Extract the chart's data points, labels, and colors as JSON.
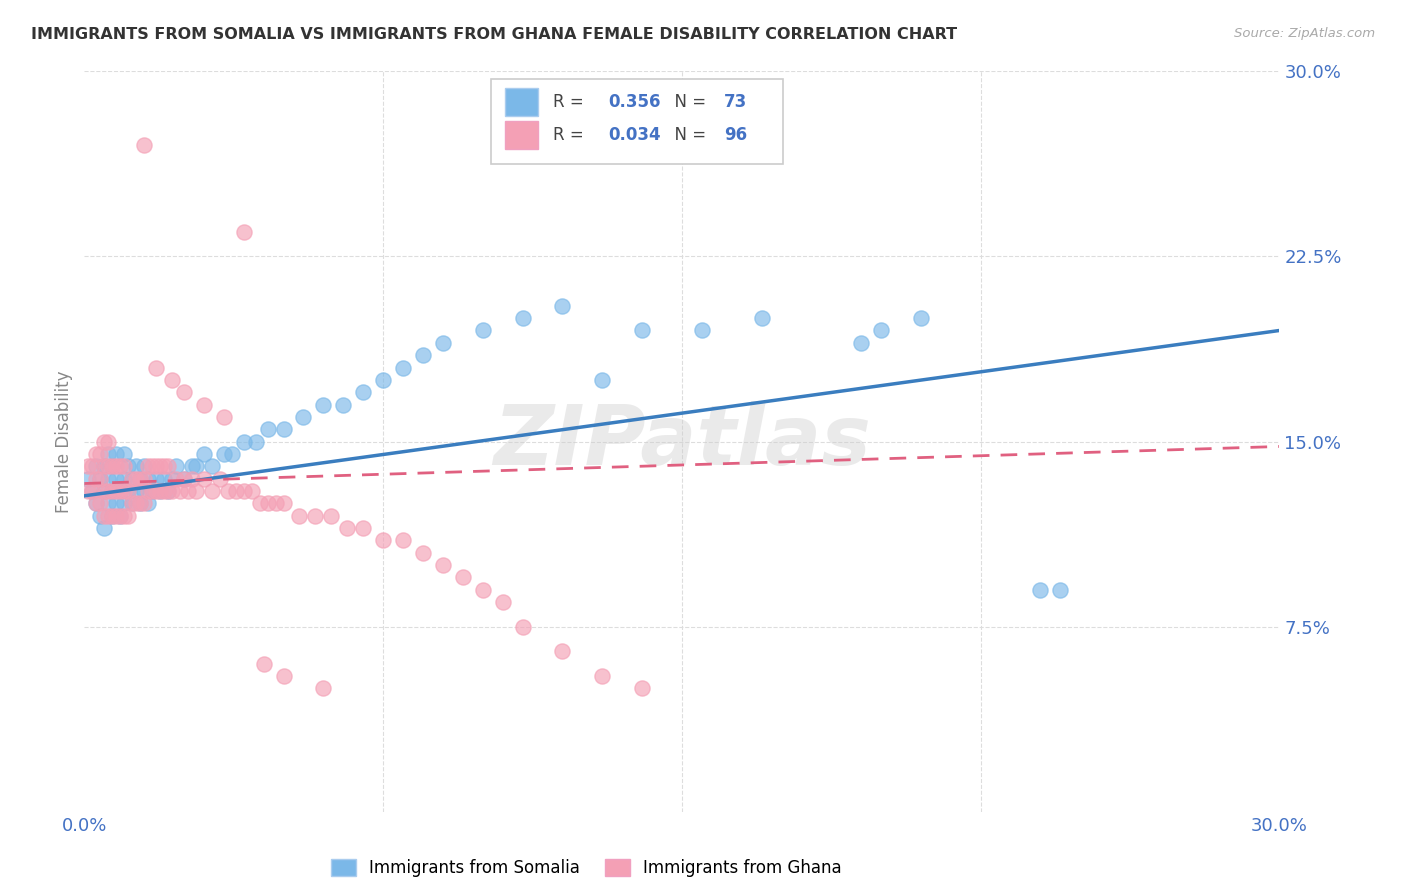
{
  "title": "IMMIGRANTS FROM SOMALIA VS IMMIGRANTS FROM GHANA FEMALE DISABILITY CORRELATION CHART",
  "source": "Source: ZipAtlas.com",
  "xlabel_legend1": "Immigrants from Somalia",
  "xlabel_legend2": "Immigrants from Ghana",
  "ylabel": "Female Disability",
  "r1": 0.356,
  "n1": 73,
  "r2": 0.034,
  "n2": 96,
  "color1": "#7bb8e8",
  "color2": "#f4a0b5",
  "trend1_color": "#3a7dbf",
  "trend2_color": "#e06080",
  "axis_color": "#4472c4",
  "background_color": "#ffffff",
  "watermark": "ZIPatlas",
  "xmin": 0.0,
  "xmax": 0.3,
  "ymin": 0.0,
  "ymax": 0.3,
  "yticks": [
    0.075,
    0.15,
    0.225,
    0.3
  ],
  "ytick_labels": [
    "7.5%",
    "15.0%",
    "22.5%",
    "30.0%"
  ],
  "somalia_x": [
    0.001,
    0.002,
    0.003,
    0.003,
    0.004,
    0.004,
    0.005,
    0.005,
    0.005,
    0.006,
    0.006,
    0.006,
    0.007,
    0.007,
    0.007,
    0.008,
    0.008,
    0.008,
    0.009,
    0.009,
    0.01,
    0.01,
    0.01,
    0.011,
    0.011,
    0.012,
    0.012,
    0.013,
    0.013,
    0.014,
    0.014,
    0.015,
    0.015,
    0.016,
    0.016,
    0.017,
    0.018,
    0.019,
    0.02,
    0.021,
    0.022,
    0.023,
    0.025,
    0.027,
    0.028,
    0.03,
    0.032,
    0.035,
    0.037,
    0.04,
    0.043,
    0.046,
    0.05,
    0.055,
    0.06,
    0.065,
    0.07,
    0.075,
    0.08,
    0.085,
    0.09,
    0.1,
    0.11,
    0.12,
    0.13,
    0.14,
    0.155,
    0.17,
    0.2,
    0.21,
    0.24,
    0.245,
    0.195
  ],
  "somalia_y": [
    0.135,
    0.13,
    0.14,
    0.125,
    0.135,
    0.12,
    0.13,
    0.14,
    0.115,
    0.125,
    0.135,
    0.145,
    0.12,
    0.13,
    0.14,
    0.125,
    0.135,
    0.145,
    0.12,
    0.13,
    0.125,
    0.135,
    0.145,
    0.13,
    0.14,
    0.125,
    0.135,
    0.13,
    0.14,
    0.125,
    0.135,
    0.13,
    0.14,
    0.125,
    0.135,
    0.13,
    0.135,
    0.13,
    0.135,
    0.13,
    0.135,
    0.14,
    0.135,
    0.14,
    0.14,
    0.145,
    0.14,
    0.145,
    0.145,
    0.15,
    0.15,
    0.155,
    0.155,
    0.16,
    0.165,
    0.165,
    0.17,
    0.175,
    0.18,
    0.185,
    0.19,
    0.195,
    0.2,
    0.205,
    0.175,
    0.195,
    0.195,
    0.2,
    0.195,
    0.2,
    0.09,
    0.09,
    0.19
  ],
  "ghana_x": [
    0.001,
    0.001,
    0.002,
    0.002,
    0.003,
    0.003,
    0.003,
    0.004,
    0.004,
    0.004,
    0.005,
    0.005,
    0.005,
    0.005,
    0.006,
    0.006,
    0.006,
    0.006,
    0.007,
    0.007,
    0.007,
    0.008,
    0.008,
    0.008,
    0.009,
    0.009,
    0.009,
    0.01,
    0.01,
    0.01,
    0.011,
    0.011,
    0.012,
    0.012,
    0.013,
    0.013,
    0.014,
    0.014,
    0.015,
    0.015,
    0.016,
    0.016,
    0.017,
    0.017,
    0.018,
    0.018,
    0.019,
    0.019,
    0.02,
    0.02,
    0.021,
    0.021,
    0.022,
    0.023,
    0.024,
    0.025,
    0.026,
    0.027,
    0.028,
    0.03,
    0.032,
    0.034,
    0.036,
    0.038,
    0.04,
    0.042,
    0.044,
    0.046,
    0.048,
    0.05,
    0.054,
    0.058,
    0.062,
    0.066,
    0.07,
    0.075,
    0.08,
    0.085,
    0.09,
    0.095,
    0.1,
    0.105,
    0.11,
    0.12,
    0.13,
    0.14,
    0.015,
    0.018,
    0.022,
    0.025,
    0.03,
    0.035,
    0.04,
    0.045,
    0.05,
    0.06
  ],
  "ghana_y": [
    0.13,
    0.14,
    0.13,
    0.14,
    0.125,
    0.135,
    0.145,
    0.125,
    0.135,
    0.145,
    0.12,
    0.13,
    0.14,
    0.15,
    0.12,
    0.13,
    0.14,
    0.15,
    0.12,
    0.13,
    0.14,
    0.12,
    0.13,
    0.14,
    0.12,
    0.13,
    0.14,
    0.12,
    0.13,
    0.14,
    0.12,
    0.13,
    0.125,
    0.135,
    0.125,
    0.135,
    0.125,
    0.135,
    0.125,
    0.135,
    0.13,
    0.14,
    0.13,
    0.14,
    0.13,
    0.14,
    0.13,
    0.14,
    0.13,
    0.14,
    0.13,
    0.14,
    0.13,
    0.135,
    0.13,
    0.135,
    0.13,
    0.135,
    0.13,
    0.135,
    0.13,
    0.135,
    0.13,
    0.13,
    0.13,
    0.13,
    0.125,
    0.125,
    0.125,
    0.125,
    0.12,
    0.12,
    0.12,
    0.115,
    0.115,
    0.11,
    0.11,
    0.105,
    0.1,
    0.095,
    0.09,
    0.085,
    0.075,
    0.065,
    0.055,
    0.05,
    0.27,
    0.18,
    0.175,
    0.17,
    0.165,
    0.16,
    0.235,
    0.06,
    0.055,
    0.05
  ],
  "trend1_start_y": 0.128,
  "trend1_end_y": 0.195,
  "trend2_start_y": 0.133,
  "trend2_end_y": 0.148
}
